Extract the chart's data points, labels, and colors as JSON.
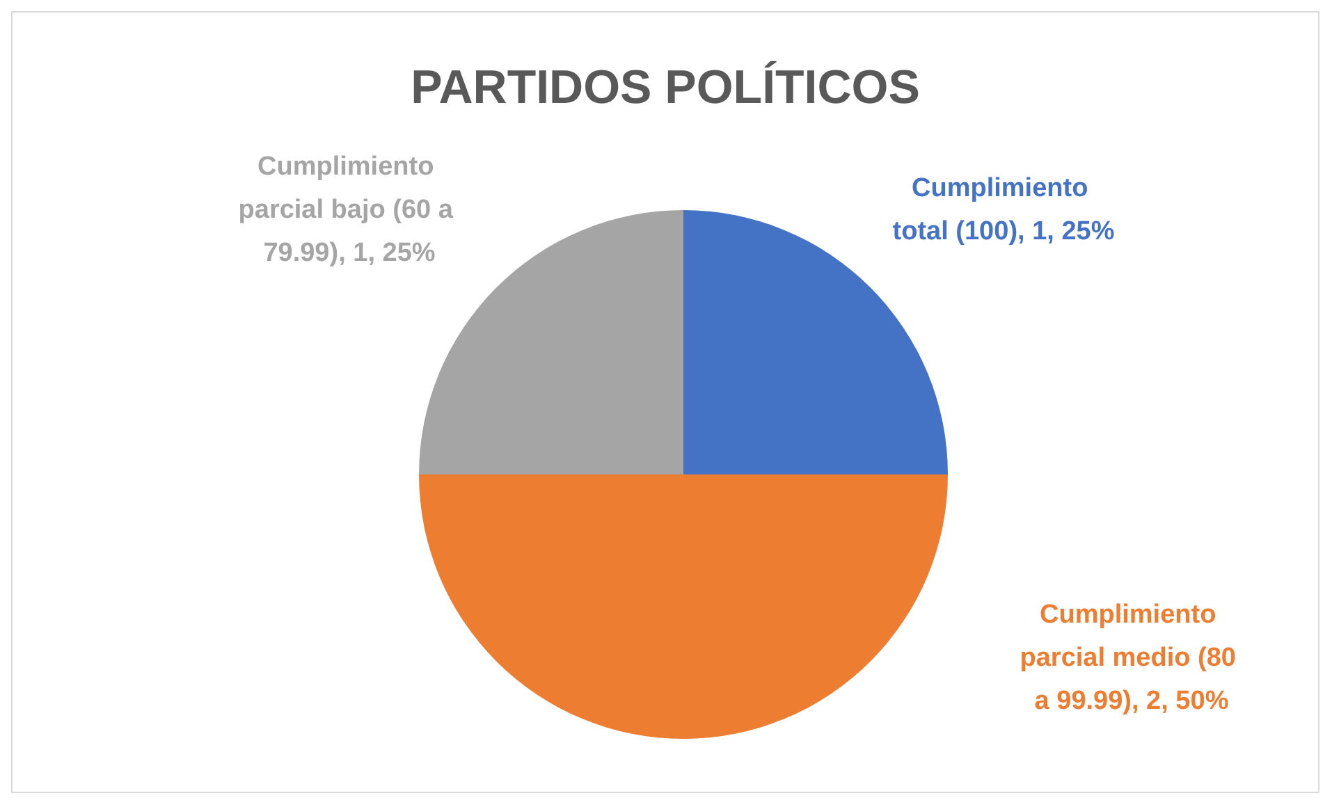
{
  "chart_data": {
    "type": "pie",
    "title": "PARTIDOS POLÍTICOS",
    "categories": [
      "Cumplimiento total (100)",
      "Cumplimiento parcial medio (80 a 99.99)",
      "Cumplimiento parcial bajo (60 a 79.99)"
    ],
    "values": [
      1,
      2,
      1
    ],
    "colors": [
      "#4472c4",
      "#ed7d31",
      "#a5a5a5"
    ],
    "value_labels": [
      "1, 25%",
      "2, 50%",
      "1, 25%"
    ],
    "legend": false
  }
}
